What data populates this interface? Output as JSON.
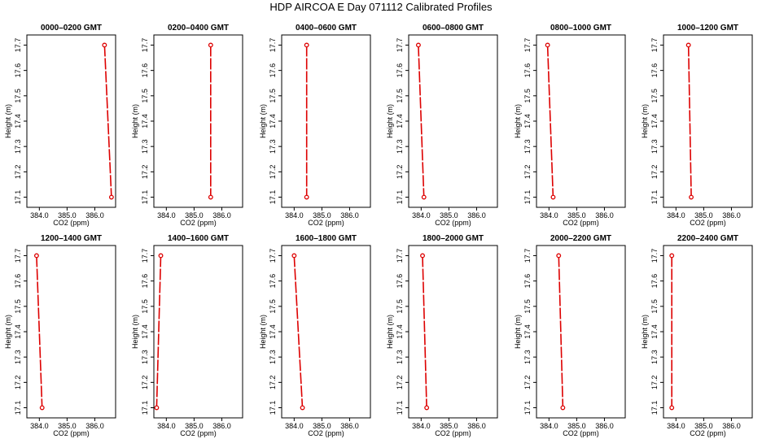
{
  "title": "HDP AIRCOA E  Day 071112  Calibrated Profiles",
  "colors": {
    "series": "#dd0000",
    "axis": "#000000"
  },
  "axes": {
    "xlabel": "CO2 (ppm)",
    "ylabel": "Height (m)",
    "xlim": [
      383.55,
      386.75
    ],
    "ylim": [
      17.06,
      17.74
    ],
    "xticks": [
      384.0,
      385.0,
      386.0
    ],
    "xtick_labels": [
      "384.0",
      "385.0",
      "386.0"
    ],
    "yticks": [
      17.1,
      17.2,
      17.3,
      17.4,
      17.5,
      17.6,
      17.7
    ],
    "ytick_labels": [
      "17.1",
      "17.2",
      "17.3",
      "17.4",
      "17.5",
      "17.6",
      "17.7"
    ]
  },
  "chart_data": [
    {
      "type": "line",
      "title": "0000–0200 GMT",
      "x": [
        386.35,
        386.6
      ],
      "y": [
        17.7,
        17.1
      ]
    },
    {
      "type": "line",
      "title": "0200–0400 GMT",
      "x": [
        385.6,
        385.6
      ],
      "y": [
        17.7,
        17.1
      ]
    },
    {
      "type": "line",
      "title": "0400–0600 GMT",
      "x": [
        384.45,
        384.45
      ],
      "y": [
        17.7,
        17.1
      ]
    },
    {
      "type": "line",
      "title": "0600–0800 GMT",
      "x": [
        383.9,
        384.1
      ],
      "y": [
        17.7,
        17.1
      ]
    },
    {
      "type": "line",
      "title": "0800–1000 GMT",
      "x": [
        383.95,
        384.15
      ],
      "y": [
        17.7,
        17.1
      ]
    },
    {
      "type": "line",
      "title": "1000–1200 GMT",
      "x": [
        384.45,
        384.55
      ],
      "y": [
        17.7,
        17.1
      ]
    },
    {
      "type": "line",
      "title": "1200–1400 GMT",
      "x": [
        383.9,
        384.1
      ],
      "y": [
        17.7,
        17.1
      ]
    },
    {
      "type": "line",
      "title": "1400–1600 GMT",
      "x": [
        383.8,
        383.65
      ],
      "y": [
        17.7,
        17.1
      ]
    },
    {
      "type": "line",
      "title": "1600–1800 GMT",
      "x": [
        384.0,
        384.3
      ],
      "y": [
        17.7,
        17.1
      ]
    },
    {
      "type": "line",
      "title": "1800–2000 GMT",
      "x": [
        384.05,
        384.2
      ],
      "y": [
        17.7,
        17.1
      ]
    },
    {
      "type": "line",
      "title": "2000–2200 GMT",
      "x": [
        384.35,
        384.5
      ],
      "y": [
        17.7,
        17.1
      ]
    },
    {
      "type": "line",
      "title": "2200–2400 GMT",
      "x": [
        383.85,
        383.85
      ],
      "y": [
        17.7,
        17.1
      ]
    }
  ]
}
